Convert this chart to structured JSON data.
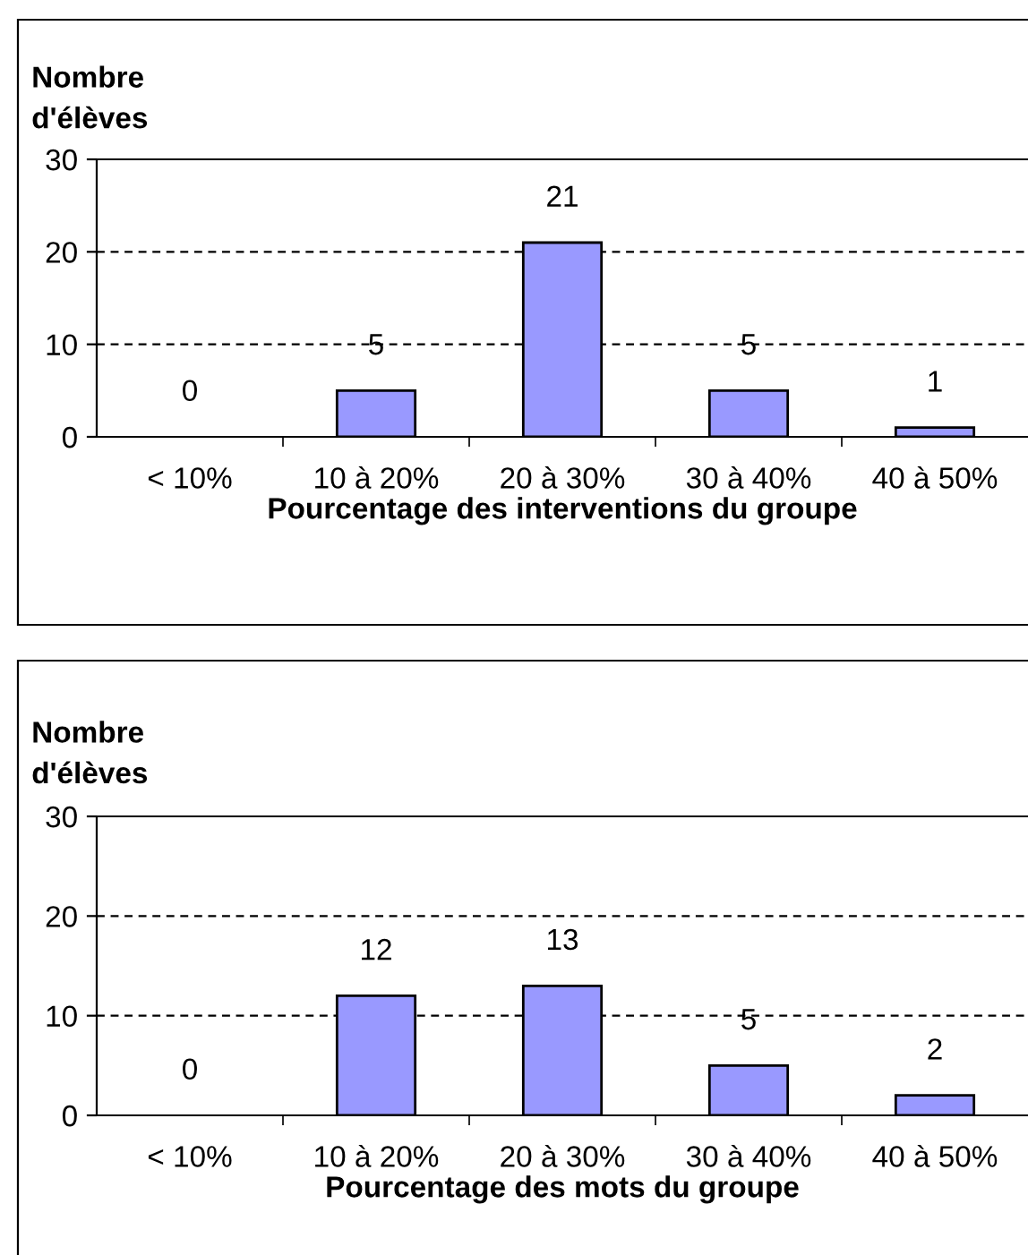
{
  "chart_data": [
    {
      "type": "bar",
      "ylabel": "Nombre\nd'élèves",
      "xlabel": "Pourcentage des interventions du groupe",
      "categories": [
        "< 10%",
        "10 à 20%",
        "20 à 30%",
        "30 à 40%",
        "40 à 50%"
      ],
      "values": [
        0,
        5,
        21,
        5,
        1
      ],
      "color": "#9999ff",
      "ylim": [
        0,
        30
      ],
      "yticks": [
        0,
        10,
        20,
        30
      ],
      "grid": "y",
      "data_labels": true
    },
    {
      "type": "bar",
      "ylabel": "Nombre\nd'élèves",
      "xlabel": "Pourcentage des mots du groupe",
      "categories": [
        "< 10%",
        "10 à 20%",
        "20 à 30%",
        "30 à 40%",
        "40 à 50%"
      ],
      "values": [
        0,
        12,
        13,
        5,
        2
      ],
      "color": "#9999ff",
      "ylim": [
        0,
        30
      ],
      "yticks": [
        0,
        10,
        20,
        30
      ],
      "grid": "y",
      "data_labels": true
    }
  ]
}
